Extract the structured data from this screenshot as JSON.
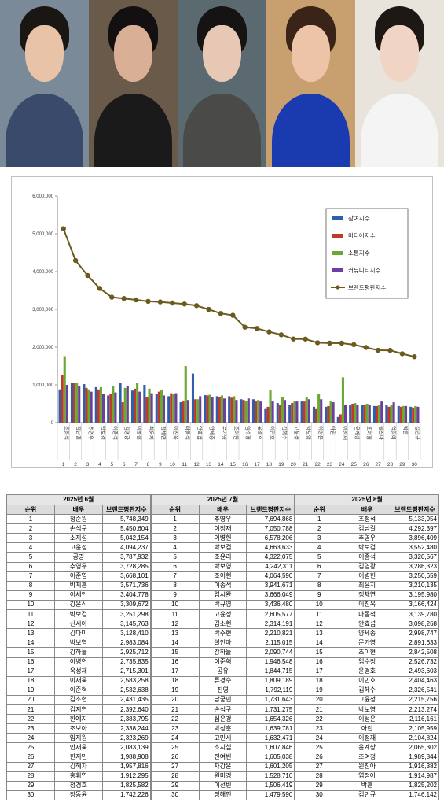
{
  "photos": [
    {
      "name": "actor-photo-1",
      "bg": "#7a8a98",
      "hair": "#1a1614",
      "face": "#e8c3a8",
      "body": "#3a4a6a"
    },
    {
      "name": "actor-photo-2",
      "bg": "#6a5a4a",
      "hair": "#121010",
      "face": "#d9b095",
      "body": "#1a1a1a"
    },
    {
      "name": "actor-photo-3",
      "bg": "#5a6a70",
      "hair": "#161412",
      "face": "#e6c8b4",
      "body": "#4a4a48"
    },
    {
      "name": "actor-photo-4",
      "bg": "#c8a070",
      "hair": "#3a2418",
      "face": "#eec4a8",
      "body": "#1a3ab0"
    },
    {
      "name": "actor-photo-5",
      "bg": "#e8e4dc",
      "hair": "#1e1814",
      "face": "#f0d4c4",
      "body": "#f4f4f4"
    }
  ],
  "colors": {
    "s1": "#2e5fa8",
    "s2": "#c0392b",
    "s3": "#6aa832",
    "s4": "#6a3fa0",
    "line": "#6b5a1e"
  },
  "chart_data": {
    "type": "bar",
    "ylim": [
      0,
      6000000
    ],
    "yticks": [
      "0",
      "1,000,000",
      "2,000,000",
      "3,000,000",
      "4,000,000",
      "5,000,000",
      "6,000,000"
    ],
    "categories": [
      "조정석",
      "김남길",
      "추영우",
      "박보검",
      "이종석",
      "김영광",
      "이병헌",
      "최윤지",
      "정채연",
      "이진욱",
      "마동석",
      "안효섭",
      "양세종",
      "문가영",
      "조이현",
      "임수정",
      "윤경호",
      "이민호",
      "김혜수",
      "고윤정",
      "박보영",
      "이성은",
      "아린",
      "이정재",
      "윤계상",
      "조여정",
      "원진아",
      "염정아",
      "박훈",
      "김민규"
    ],
    "ranks": [
      "1",
      "2",
      "3",
      "4",
      "5",
      "6",
      "7",
      "8",
      "9",
      "10",
      "11",
      "12",
      "13",
      "14",
      "15",
      "16",
      "17",
      "18",
      "19",
      "20",
      "21",
      "22",
      "23",
      "24",
      "25",
      "26",
      "27",
      "28",
      "29",
      "30"
    ],
    "series": [
      {
        "name": "참여지수",
        "values": [
          880000,
          1050000,
          1020000,
          940000,
          720000,
          1050000,
          850000,
          1000000,
          760000,
          700000,
          540000,
          1300000,
          730000,
          700000,
          700000,
          620000,
          620000,
          380000,
          520000,
          480000,
          560000,
          420000,
          420000,
          150000,
          480000,
          480000,
          440000,
          470000,
          440000,
          420000
        ]
      },
      {
        "name": "미디어지수",
        "values": [
          1250000,
          1060000,
          920000,
          880000,
          760000,
          540000,
          900000,
          680000,
          820000,
          780000,
          560000,
          620000,
          720000,
          680000,
          660000,
          600000,
          560000,
          420000,
          460000,
          520000,
          560000,
          380000,
          440000,
          220000,
          500000,
          480000,
          440000,
          420000,
          420000,
          400000
        ]
      },
      {
        "name": "소통지수",
        "values": [
          1760000,
          1060000,
          880000,
          940000,
          960000,
          920000,
          1050000,
          900000,
          860000,
          760000,
          1500000,
          620000,
          740000,
          720000,
          700000,
          580000,
          600000,
          860000,
          680000,
          560000,
          680000,
          760000,
          560000,
          1200000,
          520000,
          500000,
          460000,
          460000,
          440000,
          440000
        ]
      },
      {
        "name": "커뮤니티지수",
        "values": [
          1000000,
          980000,
          820000,
          760000,
          800000,
          980000,
          820000,
          780000,
          720000,
          780000,
          600000,
          700000,
          680000,
          640000,
          600000,
          640000,
          560000,
          560000,
          600000,
          560000,
          620000,
          620000,
          540000,
          460000,
          480000,
          480000,
          560000,
          540000,
          440000,
          420000
        ]
      }
    ],
    "line": {
      "name": "브랜드평판지수",
      "values": [
        5133954,
        4292397,
        3896409,
        3552480,
        3320567,
        3286323,
        3250659,
        3210135,
        3195980,
        3166424,
        3139780,
        3098268,
        2998747,
        2891633,
        2842508,
        2526732,
        2493603,
        2404463,
        2326541,
        2215756,
        2213274,
        2116161,
        2105959,
        2104824,
        2065302,
        1989844,
        1916382,
        1914987,
        1825202,
        1746142
      ]
    },
    "legend_position": "right"
  },
  "tables": [
    {
      "month": "2025년 6월",
      "headers": [
        "순위",
        "배우",
        "브랜드평판지수"
      ],
      "rows": [
        [
          "1",
          "정준원",
          "5,748,349"
        ],
        [
          "2",
          "손석구",
          "5,450,604"
        ],
        [
          "3",
          "소지섭",
          "5,042,154"
        ],
        [
          "4",
          "고윤정",
          "4,094,237"
        ],
        [
          "5",
          "공명",
          "3,787,932"
        ],
        [
          "6",
          "추영우",
          "3,728,285"
        ],
        [
          "7",
          "이준영",
          "3,668,101"
        ],
        [
          "8",
          "박지훈",
          "3,571,736"
        ],
        [
          "9",
          "이세인",
          "3,404,778"
        ],
        [
          "10",
          "강윤식",
          "3,309,672"
        ],
        [
          "11",
          "박보검",
          "3,251,298"
        ],
        [
          "12",
          "신시아",
          "3,145,763"
        ],
        [
          "13",
          "김다미",
          "3,128,410"
        ],
        [
          "14",
          "박보영",
          "2,983,084"
        ],
        [
          "15",
          "강하늘",
          "2,925,712"
        ],
        [
          "16",
          "이병헌",
          "2,735,835"
        ],
        [
          "17",
          "옥성재",
          "2,715,301"
        ],
        [
          "18",
          "이재욱",
          "2,583,258"
        ],
        [
          "19",
          "이준혁",
          "2,532,638"
        ],
        [
          "20",
          "김소현",
          "2,431,435"
        ],
        [
          "21",
          "김지연",
          "2,392,640"
        ],
        [
          "22",
          "한예지",
          "2,383,795"
        ],
        [
          "23",
          "조보아",
          "2,338,244"
        ],
        [
          "24",
          "임지원",
          "2,323,269"
        ],
        [
          "25",
          "안재욱",
          "2,083,139"
        ],
        [
          "26",
          "한지민",
          "1,988,908"
        ],
        [
          "27",
          "김혜자",
          "1,957,816"
        ],
        [
          "28",
          "홍휘연",
          "1,912,295"
        ],
        [
          "29",
          "정경호",
          "1,825,582"
        ],
        [
          "30",
          "장동윤",
          "1,742,226"
        ]
      ]
    },
    {
      "month": "2025년 7월",
      "headers": [
        "순위",
        "배우",
        "브랜드평판지수"
      ],
      "rows": [
        [
          "1",
          "추영우",
          "7,694,868"
        ],
        [
          "2",
          "이정재",
          "7,050,788"
        ],
        [
          "3",
          "이병헌",
          "6,578,206"
        ],
        [
          "4",
          "박보검",
          "4,663,633"
        ],
        [
          "5",
          "조윤리",
          "4,322,075"
        ],
        [
          "6",
          "박보영",
          "4,242,311"
        ],
        [
          "7",
          "조이현",
          "4,064,590"
        ],
        [
          "8",
          "이종석",
          "3,941,671"
        ],
        [
          "9",
          "임시완",
          "3,666,049"
        ],
        [
          "10",
          "박규영",
          "3,436,480"
        ],
        [
          "11",
          "고윤정",
          "2,605,577"
        ],
        [
          "12",
          "김소현",
          "2,314,191"
        ],
        [
          "13",
          "박주현",
          "2,210,821"
        ],
        [
          "14",
          "설인아",
          "2,115,015"
        ],
        [
          "15",
          "강하늘",
          "2,090,744"
        ],
        [
          "16",
          "이준혁",
          "1,946,548"
        ],
        [
          "17",
          "공유",
          "1,844,715"
        ],
        [
          "18",
          "류경수",
          "1,809,189"
        ],
        [
          "19",
          "진영",
          "1,792,119"
        ],
        [
          "20",
          "남궁민",
          "1,731,643"
        ],
        [
          "21",
          "손석구",
          "1,731,275"
        ],
        [
          "22",
          "심은경",
          "1,654,326"
        ],
        [
          "23",
          "박성훈",
          "1,639,781"
        ],
        [
          "24",
          "고민시",
          "1,632,471"
        ],
        [
          "25",
          "소지섭",
          "1,607,846"
        ],
        [
          "26",
          "전여빈",
          "1,605,038"
        ],
        [
          "27",
          "차강윤",
          "1,601,205"
        ],
        [
          "28",
          "원미경",
          "1,528,710"
        ],
        [
          "29",
          "이선빈",
          "1,506,419"
        ],
        [
          "30",
          "정해인",
          "1,479,590"
        ]
      ]
    },
    {
      "month": "2025년 8월",
      "headers": [
        "순위",
        "배우",
        "브랜드평판지수"
      ],
      "rows": [
        [
          "1",
          "조정석",
          "5,133,954"
        ],
        [
          "2",
          "김남길",
          "4,292,397"
        ],
        [
          "3",
          "추영우",
          "3,896,409"
        ],
        [
          "4",
          "박보검",
          "3,552,480"
        ],
        [
          "5",
          "이종석",
          "3,320,567"
        ],
        [
          "6",
          "김영광",
          "3,286,323"
        ],
        [
          "7",
          "이병헌",
          "3,250,659"
        ],
        [
          "8",
          "최윤지",
          "3,210,135"
        ],
        [
          "9",
          "정채연",
          "3,195,980"
        ],
        [
          "10",
          "이진욱",
          "3,166,424"
        ],
        [
          "11",
          "마동석",
          "3,139,780"
        ],
        [
          "12",
          "안효섭",
          "3,098,268"
        ],
        [
          "13",
          "양세종",
          "2,998,747"
        ],
        [
          "14",
          "문가영",
          "2,891,633"
        ],
        [
          "15",
          "조이현",
          "2,842,508"
        ],
        [
          "16",
          "임수정",
          "2,526,732"
        ],
        [
          "17",
          "윤경호",
          "2,493,603"
        ],
        [
          "18",
          "이민호",
          "2,404,463"
        ],
        [
          "19",
          "김혜수",
          "2,326,541"
        ],
        [
          "20",
          "고윤정",
          "2,215,756"
        ],
        [
          "21",
          "박보영",
          "2,213,274"
        ],
        [
          "22",
          "이성은",
          "2,116,161"
        ],
        [
          "23",
          "아린",
          "2,105,959"
        ],
        [
          "24",
          "이정재",
          "2,104,824"
        ],
        [
          "25",
          "윤계상",
          "2,065,302"
        ],
        [
          "26",
          "조여정",
          "1,989,844"
        ],
        [
          "27",
          "원진아",
          "1,916,382"
        ],
        [
          "28",
          "염정아",
          "1,914,987"
        ],
        [
          "29",
          "박훈",
          "1,825,202"
        ],
        [
          "30",
          "김민규",
          "1,746,142"
        ]
      ]
    }
  ]
}
